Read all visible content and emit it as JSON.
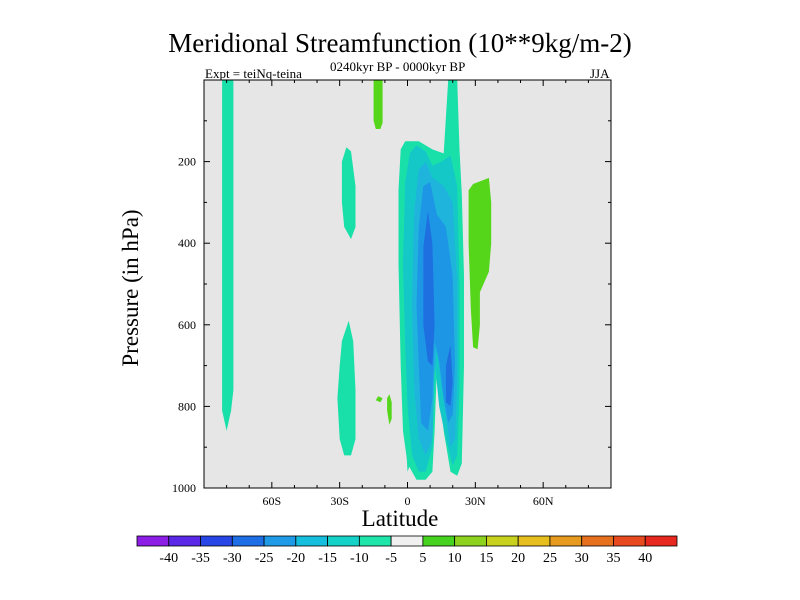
{
  "chart_data": {
    "type": "heatmap",
    "title": "Meridional Streamfunction (10**9kg/m-2)",
    "subtitle_center": "0240kyr BP - 0000kyr BP",
    "subtitle_left": "Expt = teiNq-teina",
    "subtitle_right": "JJA",
    "xlabel": "Latitude",
    "ylabel": "Pressure (in hPa)",
    "xlim": [
      -90,
      90
    ],
    "ylim": [
      1000,
      0
    ],
    "x_ticks": [
      {
        "value": -60,
        "label": "60S"
      },
      {
        "value": -30,
        "label": "30S"
      },
      {
        "value": 0,
        "label": "0"
      },
      {
        "value": 30,
        "label": "30N"
      },
      {
        "value": 60,
        "label": "60N"
      }
    ],
    "y_ticks": [
      {
        "value": 200,
        "label": "200"
      },
      {
        "value": 400,
        "label": "400"
      },
      {
        "value": 600,
        "label": "600"
      },
      {
        "value": 800,
        "label": "800"
      },
      {
        "value": 1000,
        "label": "1000"
      }
    ],
    "background_color": "#e6e6e6",
    "regions": [
      {
        "level": "-10 to -5",
        "color": "#19e0a8",
        "points": [
          [
            -82,
            0
          ],
          [
            -77,
            0
          ],
          [
            -77,
            760
          ],
          [
            -78,
            810
          ],
          [
            -80,
            860
          ],
          [
            -82,
            810
          ]
        ]
      },
      {
        "level": "5 to 10",
        "color": "#55d61a",
        "points": [
          [
            -15,
            0
          ],
          [
            -11,
            0
          ],
          [
            -11,
            105
          ],
          [
            -12,
            120
          ],
          [
            -14,
            120
          ],
          [
            -15,
            100
          ]
        ]
      },
      {
        "level": "5 to 10",
        "color": "#55d61a",
        "points": [
          [
            18,
            0
          ],
          [
            22,
            0
          ],
          [
            22,
            15
          ],
          [
            18,
            15
          ]
        ]
      },
      {
        "level": "-10 to -5",
        "color": "#19e0a8",
        "points": [
          [
            -29,
            200
          ],
          [
            -27,
            165
          ],
          [
            -25,
            175
          ],
          [
            -23,
            260
          ],
          [
            -23,
            360
          ],
          [
            -25,
            390
          ],
          [
            -28,
            360
          ],
          [
            -29,
            300
          ]
        ]
      },
      {
        "level": "-10 to -5",
        "color": "#19e0a8",
        "points": [
          [
            -29,
            640
          ],
          [
            -26,
            590
          ],
          [
            -24,
            640
          ],
          [
            -23,
            760
          ],
          [
            -23,
            880
          ],
          [
            -25,
            920
          ],
          [
            -28,
            920
          ],
          [
            -30,
            880
          ],
          [
            -31,
            780
          ],
          [
            -30,
            700
          ]
        ]
      },
      {
        "level": "-10 to -5",
        "color": "#19e0a8",
        "points": [
          [
            -1,
            850
          ],
          [
            1,
            880
          ],
          [
            2,
            930
          ],
          [
            0,
            960
          ]
        ]
      },
      {
        "level": "5 to 10",
        "color": "#55d61a",
        "points": [
          [
            -13,
            775
          ],
          [
            -11,
            780
          ],
          [
            -12,
            790
          ],
          [
            -14,
            785
          ]
        ]
      },
      {
        "level": "5 to 10",
        "color": "#55d61a",
        "points": [
          [
            -8,
            770
          ],
          [
            -7,
            790
          ],
          [
            -7,
            830
          ],
          [
            -8,
            845
          ],
          [
            -9,
            810
          ],
          [
            -9,
            780
          ]
        ]
      },
      {
        "level": "5 to 10",
        "color": "#55d61a",
        "points": [
          [
            27,
            270
          ],
          [
            29,
            255
          ],
          [
            36,
            240
          ],
          [
            37,
            300
          ],
          [
            37,
            400
          ],
          [
            36,
            470
          ],
          [
            32,
            520
          ],
          [
            32,
            600
          ],
          [
            31,
            660
          ],
          [
            29,
            655
          ],
          [
            28,
            560
          ],
          [
            27,
            400
          ]
        ]
      },
      {
        "level": "-10 to -5",
        "color": "#19e0a8",
        "points": [
          [
            -4,
            270
          ],
          [
            -3,
            170
          ],
          [
            -1,
            150
          ],
          [
            5,
            150
          ],
          [
            11,
            170
          ],
          [
            16,
            180
          ],
          [
            18,
            0
          ],
          [
            22,
            0
          ],
          [
            23,
            170
          ],
          [
            24,
            280
          ],
          [
            25,
            480
          ],
          [
            25,
            700
          ],
          [
            24,
            940
          ],
          [
            22,
            970
          ],
          [
            19,
            960
          ],
          [
            16,
            860
          ],
          [
            13,
            700
          ],
          [
            12,
            860
          ],
          [
            11,
            960
          ],
          [
            8,
            980
          ],
          [
            4,
            980
          ],
          [
            0,
            940
          ],
          [
            -2,
            860
          ],
          [
            -3,
            700
          ],
          [
            -4,
            450
          ]
        ]
      },
      {
        "level": "-15 to -10",
        "color": "#14c8c8",
        "points": [
          [
            -2,
            450
          ],
          [
            -1,
            250
          ],
          [
            1,
            180
          ],
          [
            4,
            160
          ],
          [
            8,
            175
          ],
          [
            11,
            210
          ],
          [
            15,
            200
          ],
          [
            19,
            185
          ],
          [
            22,
            260
          ],
          [
            23,
            500
          ],
          [
            23,
            760
          ],
          [
            22,
            920
          ],
          [
            20,
            945
          ],
          [
            17,
            880
          ],
          [
            14,
            800
          ],
          [
            12,
            690
          ],
          [
            11,
            900
          ],
          [
            8,
            960
          ],
          [
            5,
            960
          ],
          [
            2,
            920
          ],
          [
            0,
            800
          ],
          [
            -1,
            650
          ]
        ]
      },
      {
        "level": "-20 to -15",
        "color": "#1eb4dc",
        "points": [
          [
            3,
            320
          ],
          [
            5,
            220
          ],
          [
            8,
            200
          ],
          [
            11,
            240
          ],
          [
            16,
            260
          ],
          [
            20,
            300
          ],
          [
            22,
            500
          ],
          [
            22,
            740
          ],
          [
            21,
            880
          ],
          [
            19,
            900
          ],
          [
            17,
            820
          ],
          [
            15,
            750
          ],
          [
            13,
            660
          ],
          [
            12,
            720
          ],
          [
            11,
            880
          ],
          [
            8,
            920
          ],
          [
            5,
            880
          ],
          [
            3,
            760
          ],
          [
            2,
            550
          ]
        ]
      },
      {
        "level": "-25 to -20",
        "color": "#1e96e6",
        "points": [
          [
            5,
            360
          ],
          [
            7,
            260
          ],
          [
            10,
            250
          ],
          [
            13,
            330
          ],
          [
            17,
            360
          ],
          [
            20,
            480
          ],
          [
            21,
            700
          ],
          [
            20,
            820
          ],
          [
            18,
            840
          ],
          [
            16,
            780
          ],
          [
            14,
            690
          ],
          [
            12,
            640
          ],
          [
            11,
            780
          ],
          [
            9,
            860
          ],
          [
            6,
            840
          ],
          [
            5,
            700
          ],
          [
            4,
            550
          ]
        ]
      },
      {
        "level": "-30 to -25",
        "color": "#1e70e0",
        "points": [
          [
            7,
            410
          ],
          [
            9,
            320
          ],
          [
            11,
            400
          ],
          [
            12,
            600
          ],
          [
            11,
            700
          ],
          [
            9,
            690
          ],
          [
            7,
            600
          ]
        ]
      },
      {
        "level": "-30 to -25",
        "color": "#1e70e0",
        "points": [
          [
            17,
            700
          ],
          [
            19,
            650
          ],
          [
            20,
            740
          ],
          [
            19,
            800
          ],
          [
            17,
            790
          ]
        ]
      }
    ],
    "colorbar": {
      "labels": [
        "-40",
        "-35",
        "-30",
        "-25",
        "-20",
        "-15",
        "-10",
        "-5",
        "5",
        "10",
        "15",
        "20",
        "25",
        "30",
        "35",
        "40"
      ],
      "colors": [
        "#8c1ee6",
        "#5a28e6",
        "#2846e6",
        "#1e6ee6",
        "#1e9ae6",
        "#14bedc",
        "#14d2c8",
        "#1ee6aa",
        "#f0f0f0",
        "#46d21e",
        "#8cd21e",
        "#c8d21e",
        "#e6be1e",
        "#e69a1e",
        "#e6701e",
        "#e64a1e",
        "#e6281e"
      ]
    }
  }
}
